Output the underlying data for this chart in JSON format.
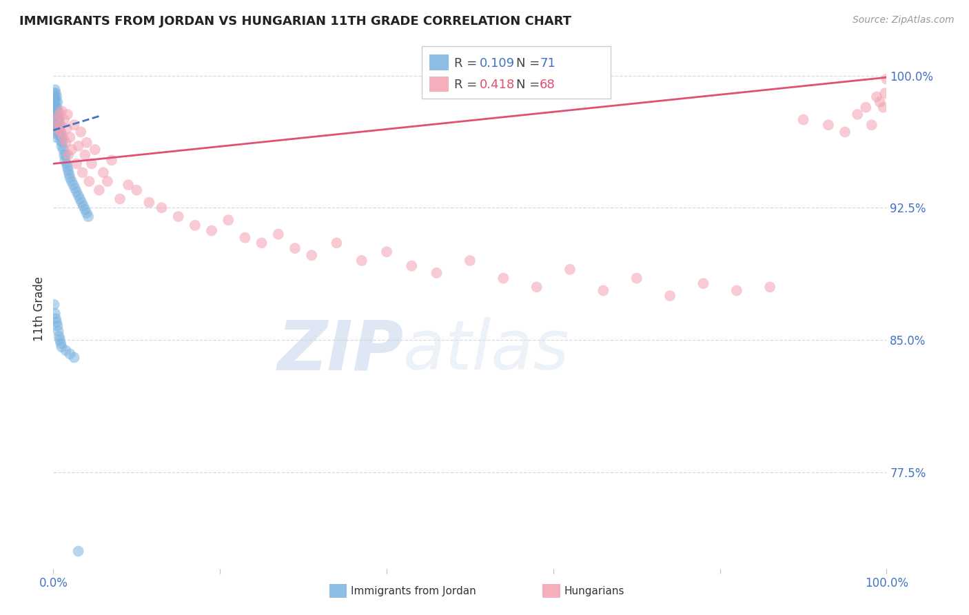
{
  "title": "IMMIGRANTS FROM JORDAN VS HUNGARIAN 11TH GRADE CORRELATION CHART",
  "source": "Source: ZipAtlas.com",
  "ylabel": "11th Grade",
  "y_tick_labels": [
    "77.5%",
    "85.0%",
    "92.5%",
    "100.0%"
  ],
  "y_tick_values": [
    0.775,
    0.85,
    0.925,
    1.0
  ],
  "watermark_zip": "ZIP",
  "watermark_atlas": "atlas",
  "background_color": "#ffffff",
  "grid_color": "#d8d8e8",
  "title_color": "#222222",
  "axis_label_color": "#4472c4",
  "right_axis_color": "#4472c4",
  "scatter_blue_color": "#7ab3e0",
  "scatter_pink_color": "#f4a0b0",
  "trend_blue_color": "#4472c4",
  "trend_pink_color": "#e05070",
  "legend_text_blue": "#4472c4",
  "legend_text_pink": "#e05070",
  "scatter_size": 130,
  "scatter_alpha": 0.55,
  "x_lim": [
    0.0,
    1.0
  ],
  "y_lim": [
    0.72,
    1.015
  ],
  "blue_R": "0.109",
  "blue_N": "71",
  "pink_R": "0.418",
  "pink_N": "68",
  "blue_scatter_x": [
    0.0005,
    0.001,
    0.001,
    0.0015,
    0.0015,
    0.002,
    0.002,
    0.002,
    0.002,
    0.002,
    0.003,
    0.003,
    0.003,
    0.003,
    0.003,
    0.003,
    0.004,
    0.004,
    0.004,
    0.004,
    0.004,
    0.005,
    0.005,
    0.005,
    0.005,
    0.006,
    0.006,
    0.006,
    0.007,
    0.007,
    0.008,
    0.008,
    0.009,
    0.009,
    0.01,
    0.01,
    0.011,
    0.012,
    0.013,
    0.014,
    0.015,
    0.016,
    0.017,
    0.018,
    0.019,
    0.02,
    0.022,
    0.024,
    0.026,
    0.028,
    0.03,
    0.032,
    0.034,
    0.036,
    0.038,
    0.04,
    0.042,
    0.001,
    0.002,
    0.003,
    0.004,
    0.005,
    0.006,
    0.007,
    0.008,
    0.009,
    0.01,
    0.015,
    0.02,
    0.025,
    0.03
  ],
  "blue_scatter_y": [
    0.99,
    0.988,
    0.982,
    0.985,
    0.979,
    0.992,
    0.987,
    0.982,
    0.976,
    0.971,
    0.99,
    0.985,
    0.98,
    0.975,
    0.97,
    0.965,
    0.988,
    0.982,
    0.977,
    0.972,
    0.967,
    0.985,
    0.979,
    0.974,
    0.968,
    0.98,
    0.975,
    0.97,
    0.975,
    0.969,
    0.972,
    0.966,
    0.968,
    0.963,
    0.965,
    0.96,
    0.962,
    0.958,
    0.955,
    0.952,
    0.955,
    0.95,
    0.948,
    0.946,
    0.944,
    0.942,
    0.94,
    0.938,
    0.936,
    0.934,
    0.932,
    0.93,
    0.928,
    0.926,
    0.924,
    0.922,
    0.92,
    0.87,
    0.865,
    0.862,
    0.86,
    0.858,
    0.855,
    0.852,
    0.85,
    0.848,
    0.846,
    0.844,
    0.842,
    0.84,
    0.73
  ],
  "pink_scatter_x": [
    0.003,
    0.005,
    0.007,
    0.008,
    0.009,
    0.01,
    0.012,
    0.013,
    0.015,
    0.016,
    0.017,
    0.018,
    0.02,
    0.022,
    0.025,
    0.028,
    0.03,
    0.033,
    0.035,
    0.038,
    0.04,
    0.043,
    0.046,
    0.05,
    0.055,
    0.06,
    0.065,
    0.07,
    0.08,
    0.09,
    0.1,
    0.115,
    0.13,
    0.15,
    0.17,
    0.19,
    0.21,
    0.23,
    0.25,
    0.27,
    0.29,
    0.31,
    0.34,
    0.37,
    0.4,
    0.43,
    0.46,
    0.5,
    0.54,
    0.58,
    0.62,
    0.66,
    0.7,
    0.74,
    0.78,
    0.82,
    0.86,
    0.9,
    0.93,
    0.95,
    0.965,
    0.975,
    0.982,
    0.988,
    0.992,
    0.996,
    0.998,
    1.0
  ],
  "pink_scatter_y": [
    0.975,
    0.97,
    0.978,
    0.972,
    0.968,
    0.98,
    0.965,
    0.975,
    0.962,
    0.97,
    0.978,
    0.955,
    0.965,
    0.958,
    0.972,
    0.95,
    0.96,
    0.968,
    0.945,
    0.955,
    0.962,
    0.94,
    0.95,
    0.958,
    0.935,
    0.945,
    0.94,
    0.952,
    0.93,
    0.938,
    0.935,
    0.928,
    0.925,
    0.92,
    0.915,
    0.912,
    0.918,
    0.908,
    0.905,
    0.91,
    0.902,
    0.898,
    0.905,
    0.895,
    0.9,
    0.892,
    0.888,
    0.895,
    0.885,
    0.88,
    0.89,
    0.878,
    0.885,
    0.875,
    0.882,
    0.878,
    0.88,
    0.975,
    0.972,
    0.968,
    0.978,
    0.982,
    0.972,
    0.988,
    0.985,
    0.982,
    0.99,
    0.998
  ],
  "blue_trend_x": [
    0.0,
    0.055
  ],
  "blue_trend_y": [
    0.969,
    0.977
  ],
  "pink_trend_x": [
    0.0,
    1.0
  ],
  "pink_trend_y": [
    0.95,
    0.999
  ]
}
